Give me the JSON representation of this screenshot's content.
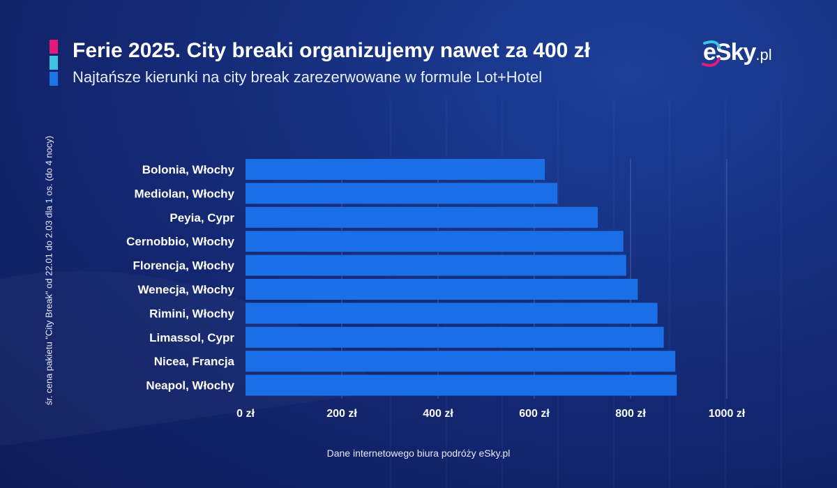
{
  "header": {
    "title": "Ferie 2025. City breaki organizujemy nawet za 400 zł",
    "subtitle": "Najtańsze kierunki na city break zarezerwowane w formule Lot+Hotel"
  },
  "logo": {
    "main": "eSky",
    "suffix": ".pl"
  },
  "footer": {
    "source": "Dane internetowego biura podróży eSky.pl"
  },
  "colors": {
    "bar": "#1a6fe6",
    "accent_top": "#e5197a",
    "accent_mid": "#3fc3e3",
    "accent_bottom": "#1b74e8",
    "gridline": "#6f84c4"
  },
  "chart_data": {
    "type": "bar",
    "orientation": "horizontal",
    "ylabel": "śr. cena pakietu \"City Break\" od 22.01 do 2.03 dla 1 os.  (do 4 nocy)",
    "xlabel": "",
    "xlim": [
      0,
      1000
    ],
    "tick_values": [
      0,
      200,
      400,
      600,
      800,
      1000
    ],
    "tick_labels": [
      "0 zł",
      "200 zł",
      "400 zł",
      "600 zł",
      "800 zł",
      "1000 zł"
    ],
    "grid": "vertical",
    "categories": [
      "Bolonia, Włochy",
      "Mediolan, Włochy",
      "Peyia, Cypr",
      "Cernobbio, Włochy",
      "Florencja, Włochy",
      "Wenecja, Włochy",
      "Rimini, Włochy",
      "Limassol, Cypr",
      "Nicea, Francja",
      "Neapol, Włochy"
    ],
    "values": [
      622,
      648,
      732,
      785,
      791,
      815,
      856,
      869,
      893,
      896
    ]
  }
}
